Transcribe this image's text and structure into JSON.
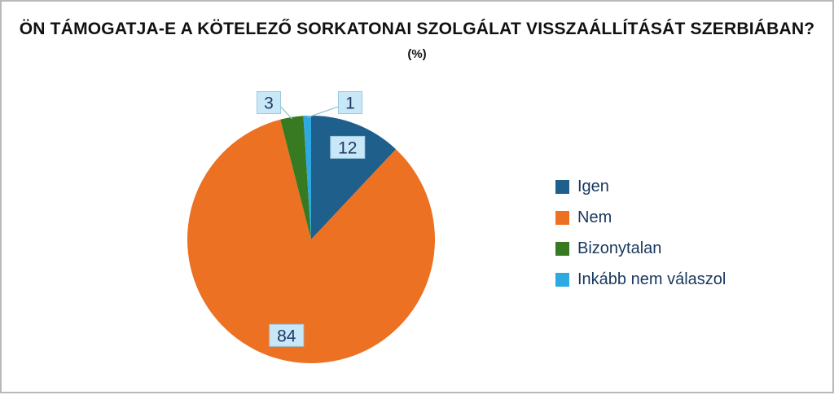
{
  "title": "ÖN TÁMOGATJA-E A KÖTELEZŐ SORKATONAI SZOLGÁLAT VISSZAÁLLÍTÁSÁT SZERBIÁBAN?",
  "subtitle": "(%)",
  "chart_data": {
    "type": "pie",
    "title": "ÖN TÁMOGATJA-E A KÖTELEZŐ SORKATONAI SZOLGÁLAT VISSZAÁLLÍTÁSÁT SZERBIÁBAN? (%)",
    "categories": [
      "Igen",
      "Nem",
      "Bizonytalan",
      "Inkább nem válaszol"
    ],
    "values": [
      12,
      84,
      3,
      1
    ],
    "colors": [
      "#1F5F8B",
      "#EC7123",
      "#377A21",
      "#2EA9E1"
    ],
    "start_angle_deg": 0,
    "direction": "clockwise",
    "legend_position": "right",
    "inside_label_threshold_pct": 5,
    "outside_label_sides": [
      "",
      "",
      "left",
      "right"
    ],
    "label_style": {
      "bg": "#C9E8F7",
      "border": "#9CC9E0",
      "text": "#1F3864"
    }
  }
}
